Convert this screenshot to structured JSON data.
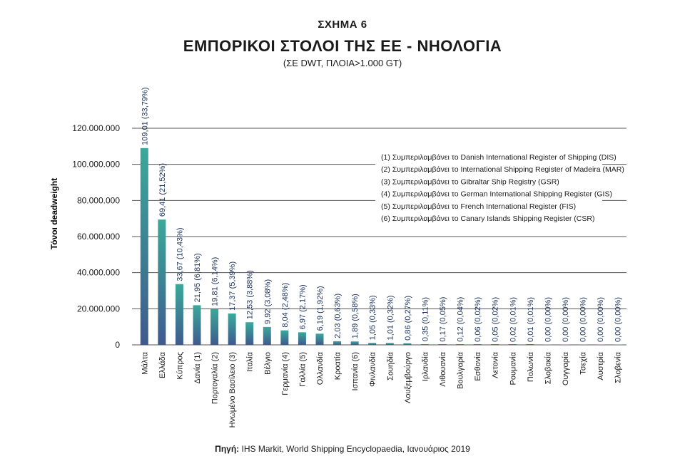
{
  "header": {
    "figure_label": "ΣΧΗΜΑ 6",
    "title": "ΕΜΠΟΡΙΚΟΙ ΣΤΟΛΟΙ ΤΗΣ ΕΕ - ΝΗΟΛΟΓΙΑ",
    "subtitle": "(ΣΕ DWT, ΠΛΟΙΑ>1.000 GT)"
  },
  "source": {
    "label": "Πηγή:",
    "text": " IHS Markit, World Shipping Encyclopaedia, Ιανουάριος 2019"
  },
  "colors": {
    "bar_top": "#3aa99a",
    "bar_bottom": "#3f5a8e",
    "grid": "#555555",
    "text": "#1a1a1a",
    "label_text": "#1f3560"
  },
  "chart_data": {
    "type": "bar",
    "ylabel": "Τόνοι deadweight",
    "ylim": [
      0,
      120000000
    ],
    "yticks": [
      "0",
      "20.000.000",
      "40.000.000",
      "60.000.000",
      "80.000.000",
      "100.000.000",
      "120.000.000"
    ],
    "grid": true,
    "categories": [
      "Μάλτα",
      "Ελλάδα",
      "Κύπρος",
      "Δανία (1)",
      "Πορτογαλία (2)",
      "Ηνωμένο Βασίλειο (3)",
      "Ιταλία",
      "Βέλγιο",
      "Γερμανία (4)",
      "Γαλλία (5)",
      "Ολλανδία",
      "Κροατία",
      "Ισπανία (6)",
      "Φινλανδία",
      "Σουηδία",
      "Λουξεμβούργο",
      "Ιρλανδία",
      "Λιθουανία",
      "Βουλγαρία",
      "Εσθονία",
      "Λετονία",
      "Ρουμανία",
      "Πολωνία",
      "Σλοβακία",
      "Ουγγαρία",
      "Τσεχία",
      "Αυστρία",
      "Σλοβενία"
    ],
    "values": [
      109010000,
      69410000,
      33670000,
      21950000,
      19810000,
      17370000,
      12530000,
      9920000,
      8040000,
      6970000,
      6190000,
      2030000,
      1890000,
      1050000,
      1010000,
      860000,
      350000,
      170000,
      120000,
      60000,
      50000,
      20000,
      10000,
      0,
      0,
      0,
      0,
      0
    ],
    "data_labels": [
      "109,01 (33,79%)",
      "69,41 (21,52%)",
      "33,67 (10,43%)",
      "21,95 (6,81%)",
      "19,81 (6,14%)",
      "17,37 (5,39%)",
      "12,53 (3,88%)",
      "9,92 (3,08%)",
      "8,04 (2,48%)",
      "6,97 (2,17%)",
      "6,19 (1,92%)",
      "2,03 (0,63%)",
      "1,89 (0,58%)",
      "1,05 (0,33%)",
      "1,01 (0,32%)",
      "0,86 (0,27%)",
      "0,35 (0,11%)",
      "0,17 (0,05%)",
      "0,12 (0,04%)",
      "0,06 (0,02%)",
      "0,05 (0,02%)",
      "0,02 (0,01%)",
      "0,01 (0,01%)",
      "0,00 (0,00%)",
      "0,00 (0,00%)",
      "0,00 (0,00%)",
      "0,00 (0,00%)",
      "0,00 (0,00%)"
    ],
    "annotations": [
      "(1) Συμπεριλαμβάνει το Danish International Register of Shipping (DIS)",
      "(2) Συμπεριλαμβάνει το International Shipping Register of Madeira (MAR)",
      "(3) Συμπεριλαμβάνει το Gibraltar Ship Registry (GSR)",
      "(4) Συμπεριλαμβάνει το German International Shipping Register (GIS)",
      "(5) Συμπεριλαμβάνει το French International Register (FIS)",
      "(6) Συμπεριλαμβάνει το Canary Islands Shipping Register (CSR)"
    ],
    "annotations_placement": "upper-right"
  }
}
